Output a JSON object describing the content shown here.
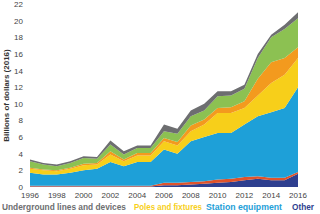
{
  "chart_data": {
    "type": "area",
    "stacked": true,
    "grid": false,
    "legend": "bottom",
    "y_label": "Billions of dollars (2016)",
    "x": [
      1996,
      1997,
      1998,
      1999,
      2000,
      2001,
      2002,
      2003,
      2004,
      2005,
      2006,
      2007,
      2008,
      2009,
      2010,
      2011,
      2012,
      2013,
      2014,
      2015,
      2016
    ],
    "xlim": [
      1996,
      2016
    ],
    "xticks": [
      1996,
      1998,
      2000,
      2002,
      2004,
      2006,
      2008,
      2010,
      2012,
      2014,
      2016
    ],
    "ylim": [
      0,
      22
    ],
    "yticks": [
      0,
      2,
      4,
      6,
      8,
      10,
      12,
      14,
      16,
      18,
      20,
      22
    ],
    "series": [
      {
        "name": "Other",
        "color": "#2e3f8f",
        "values": [
          0.05,
          0.05,
          0.05,
          0.05,
          0.05,
          0.05,
          0.05,
          0.05,
          0.05,
          0.05,
          0.2,
          0.2,
          0.3,
          0.4,
          0.5,
          0.6,
          0.8,
          1.0,
          0.8,
          0.8,
          1.6
        ]
      },
      {
        "color": "#e0532a",
        "values": [
          0.1,
          0.1,
          0.1,
          0.1,
          0.1,
          0.1,
          0.1,
          0.1,
          0.1,
          0.1,
          0.3,
          0.3,
          0.3,
          0.3,
          0.4,
          0.4,
          0.4,
          0.3,
          0.3,
          0.3,
          0.2
        ]
      },
      {
        "name": "Station equipment",
        "color": "#1ea0d8",
        "values": [
          1.55,
          1.35,
          1.35,
          1.55,
          1.85,
          2.05,
          2.85,
          2.35,
          2.85,
          2.85,
          4.0,
          3.5,
          4.9,
          5.3,
          5.6,
          5.5,
          6.3,
          7.2,
          7.9,
          8.4,
          10.2
        ]
      },
      {
        "name": "Poles and fixtures",
        "color": "#f7cf1a",
        "values": [
          0.5,
          0.5,
          0.4,
          0.5,
          0.6,
          0.5,
          0.9,
          0.6,
          0.8,
          0.8,
          1.0,
          1.0,
          1.2,
          1.5,
          2.4,
          2.4,
          2.0,
          2.5,
          3.5,
          4.0,
          3.5
        ]
      },
      {
        "color": "#f39a1e",
        "values": [
          0.1,
          0.1,
          0.1,
          0.1,
          0.2,
          0.2,
          0.4,
          0.2,
          0.3,
          0.3,
          0.4,
          0.4,
          0.7,
          0.6,
          0.6,
          0.7,
          0.8,
          2.0,
          2.5,
          2.0,
          1.3
        ]
      },
      {
        "color": "#8cc152",
        "values": [
          0.8,
          0.6,
          0.5,
          0.6,
          0.7,
          0.5,
          0.8,
          0.6,
          0.6,
          0.6,
          0.8,
          1.0,
          1.1,
          1.1,
          1.4,
          1.4,
          1.5,
          2.5,
          3.0,
          3.5,
          3.5
        ]
      },
      {
        "name": "Underground lines and devices",
        "color": "#6d6e70",
        "values": [
          0.2,
          0.2,
          0.2,
          0.2,
          0.2,
          0.2,
          0.5,
          0.4,
          0.3,
          0.3,
          0.8,
          0.6,
          0.7,
          0.8,
          0.6,
          0.5,
          0.5,
          0.5,
          0.3,
          0.5,
          0.7
        ]
      }
    ]
  }
}
